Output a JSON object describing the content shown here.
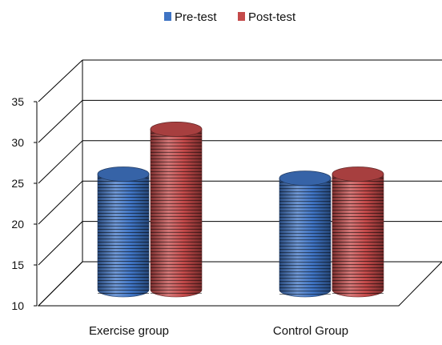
{
  "chart_data": {
    "type": "bar",
    "categories": [
      "Exercise group",
      "Control Group"
    ],
    "series": [
      {
        "name": "Pre-test",
        "values": [
          27.5,
          27.0
        ],
        "color": "#3f74c4"
      },
      {
        "name": "Post-test",
        "values": [
          33.0,
          27.5
        ],
        "color": "#c44a4a"
      }
    ],
    "ylim": [
      10,
      35
    ],
    "yticks": [
      "10",
      "15",
      "20",
      "25",
      "30",
      "35"
    ],
    "grid": true,
    "legend_position": "top-center",
    "style": "3d-cylinder"
  }
}
